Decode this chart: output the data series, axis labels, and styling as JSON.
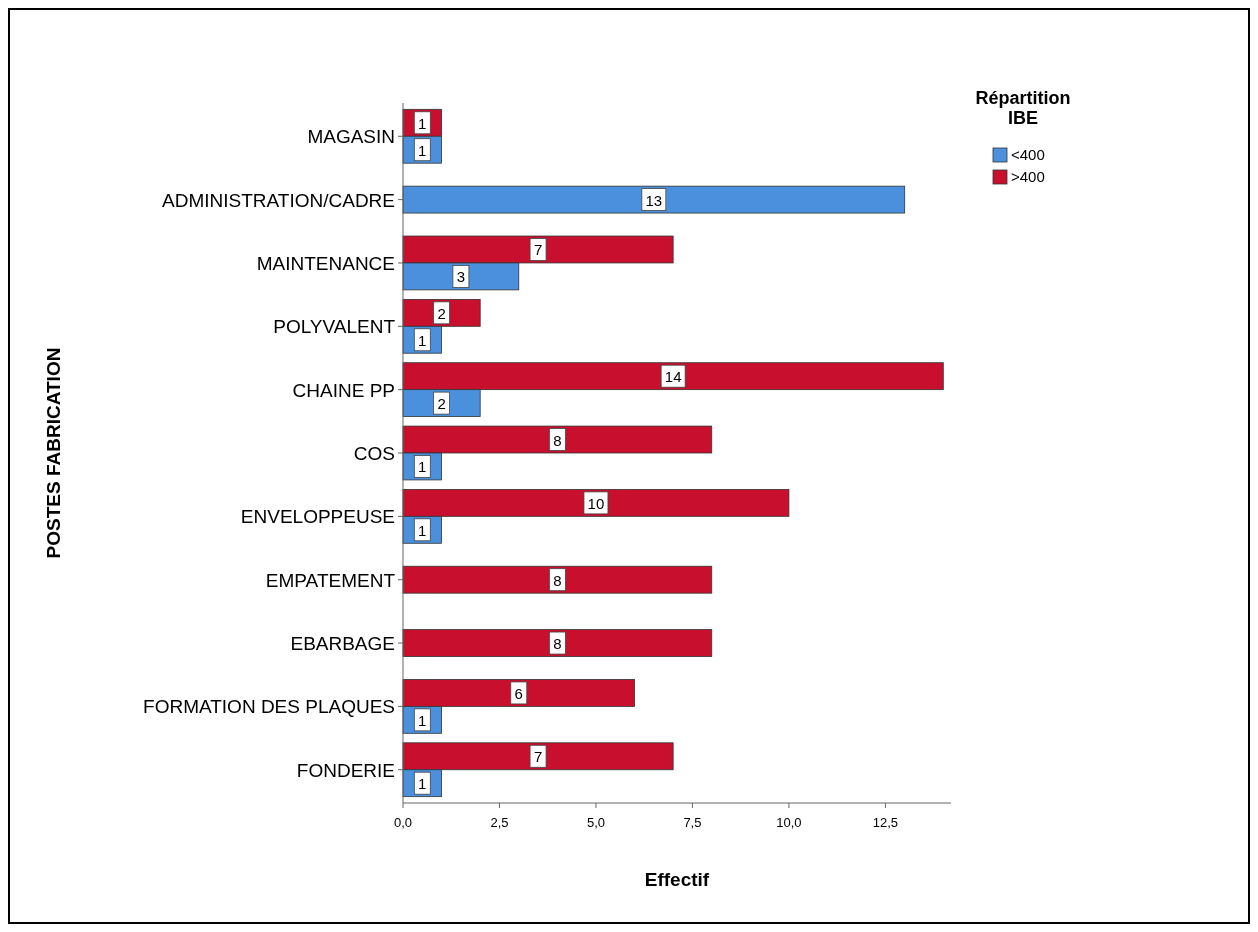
{
  "chart_data": {
    "type": "bar",
    "orientation": "horizontal",
    "xlabel": "Effectif",
    "ylabel": "POSTES FABRICATION",
    "legend_title": "Répartition IBE",
    "legend": "top right",
    "grid": false,
    "data_labels": true,
    "categories": [
      "MAGASIN",
      "ADMINISTRATION/CADRE",
      "MAINTENANCE",
      "POLYVALENT",
      "CHAINE PP",
      "COS",
      "ENVELOPPEUSE",
      "EMPATEMENT",
      "EBARBAGE",
      "FORMATION DES PLAQUES",
      "FONDERIE"
    ],
    "series": [
      {
        "name": "<400",
        "color": "#4a90dc",
        "values": [
          1,
          13,
          3,
          1,
          2,
          1,
          1,
          null,
          null,
          1,
          1
        ]
      },
      {
        "name": ">400",
        "color": "#c8102e",
        "values": [
          1,
          null,
          7,
          2,
          14,
          8,
          10,
          8,
          8,
          6,
          7
        ]
      }
    ],
    "xlim": [
      0,
      14.2
    ],
    "xticks": [
      {
        "value": 0,
        "label": "0,0"
      },
      {
        "value": 2.5,
        "label": "2,5"
      },
      {
        "value": 5,
        "label": "5,0"
      },
      {
        "value": 7.5,
        "label": "7,5"
      },
      {
        "value": 10,
        "label": "10,0"
      },
      {
        "value": 12.5,
        "label": "12,5"
      }
    ]
  }
}
